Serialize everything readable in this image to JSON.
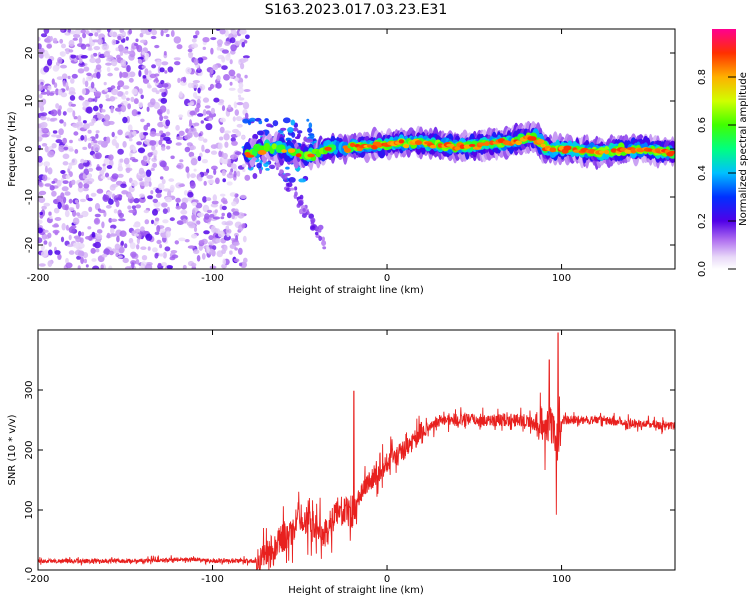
{
  "chart_data": [
    {
      "type": "heatmap",
      "title": "S163.2023.017.03.23.E31",
      "xlabel": "Height of straight line (km)",
      "ylabel": "Frequency (Hz)",
      "xlim": [
        -200,
        165
      ],
      "ylim": [
        -25,
        25
      ],
      "xticks": [
        -200,
        -100,
        0,
        100
      ],
      "yticks": [
        -20,
        -10,
        0,
        10,
        20
      ],
      "colorbar": {
        "label": "Normalized spectral amplitude",
        "range": [
          0,
          1
        ],
        "ticks": [
          0.0,
          0.2,
          0.4,
          0.6,
          0.8
        ],
        "tick_labels": [
          "0.0",
          "0.2",
          "0.4",
          "0.6",
          "0.8"
        ]
      },
      "features": [
        {
          "name": "scattered noise",
          "x_range": [
            -200,
            -80
          ],
          "freq_range": [
            -25,
            25
          ],
          "amplitude": [
            0.05,
            0.2
          ]
        },
        {
          "name": "signal band",
          "x_range": [
            -80,
            165
          ],
          "freq_center": [
            0,
            2
          ],
          "amplitude": [
            0.3,
            1.0
          ]
        },
        {
          "name": "diagonal streak",
          "x_start": -65,
          "x_end": -35,
          "freq_start": -2,
          "freq_end": -20,
          "amplitude": [
            0.1,
            0.2
          ]
        }
      ]
    },
    {
      "type": "line",
      "xlabel": "Height of straight line (km)",
      "ylabel": "SNR (10 * v/v)",
      "xlim": [
        -200,
        165
      ],
      "ylim": [
        0,
        400
      ],
      "xticks": [
        -200,
        -100,
        0,
        100
      ],
      "yticks": [
        0,
        100,
        200,
        300
      ],
      "series": [
        {
          "name": "SNR",
          "color": "#e8201e",
          "x": [
            -200,
            -150,
            -110,
            -100,
            -75,
            -68,
            -62,
            -55,
            -50,
            -45,
            -40,
            -35,
            -30,
            -25,
            -20,
            -15,
            -10,
            -5,
            0,
            10,
            20,
            30,
            40,
            50,
            60,
            70,
            80,
            85,
            88,
            90,
            93,
            95,
            98,
            100,
            105,
            120,
            140,
            165
          ],
          "y": [
            15,
            15,
            18,
            15,
            15,
            30,
            50,
            60,
            90,
            80,
            70,
            60,
            90,
            100,
            90,
            130,
            150,
            160,
            180,
            200,
            230,
            250,
            250,
            250,
            250,
            250,
            250,
            240,
            250,
            230,
            250,
            230,
            210,
            250,
            250,
            250,
            245,
            240
          ]
        }
      ],
      "annotations": [
        {
          "x": -19,
          "y": 298,
          "note": "spike"
        },
        {
          "x": 93,
          "y": 350,
          "note": "spike"
        },
        {
          "x": 98,
          "y": 395,
          "note": "peak"
        },
        {
          "x": 97,
          "y": 92,
          "note": "dip"
        }
      ]
    }
  ]
}
